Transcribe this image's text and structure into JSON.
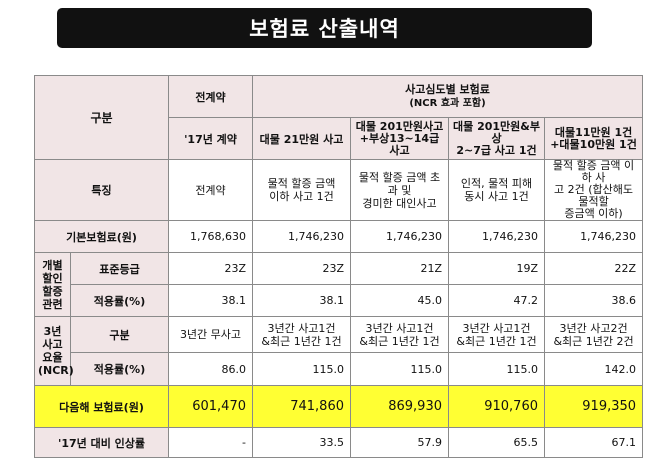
{
  "title": "보험료 산출내역",
  "header": {
    "category": "구분",
    "prior_contract": "전계약",
    "prior_year": "'17년 계약",
    "scenario_group": "사고심도별 보험료",
    "scenario_group_sub": "(NCR 효과 포함)",
    "scenarios": [
      "대물 21만원 사고",
      "대물 201만원사고\n+부상13~14급 사고",
      "대물 201만원&부상\n2~7급 사고 1건",
      "대물11만원 1건\n+대물10만원 1건"
    ]
  },
  "rows": {
    "feature": {
      "label": "특징",
      "values": [
        "전계약",
        "물적 할증 금액\n이하 사고 1건",
        "물적 할증 금액 초과 및\n경미한 대인사고",
        "인적, 물적 피해\n동시 사고 1건",
        "물적 할증 금액 이하 사\n고 2건 (합산해도 물적할\n증금액 이하)"
      ]
    },
    "base_premium": {
      "label": "기본보험료(원)",
      "values": [
        "1,768,630",
        "1,746,230",
        "1,746,230",
        "1,746,230",
        "1,746,230"
      ]
    },
    "individual_group": {
      "label": "개별\n할인\n할증\n관련"
    },
    "grade": {
      "label": "표준등급",
      "values": [
        "23Z",
        "23Z",
        "21Z",
        "19Z",
        "22Z"
      ]
    },
    "rate1": {
      "label": "적용률(%)",
      "values": [
        "38.1",
        "38.1",
        "45.0",
        "47.2",
        "38.6"
      ]
    },
    "ncr_group": {
      "label": "3년\n사고\n요율\n(NCR)"
    },
    "ncr_category": {
      "label": "구분",
      "values": [
        "3년간 무사고",
        "3년간 사고1건\n&최근 1년간 1건",
        "3년간 사고1건\n&최근 1년간 1건",
        "3년간 사고1건\n&최근 1년간 1건",
        "3년간 사고2건\n&최근 1년간 2건"
      ]
    },
    "rate2": {
      "label": "적용률(%)",
      "values": [
        "86.0",
        "115.0",
        "115.0",
        "115.0",
        "142.0"
      ]
    },
    "next_premium": {
      "label": "다음해 보험료(원)",
      "values": [
        "601,470",
        "741,860",
        "869,930",
        "910,760",
        "919,350"
      ]
    },
    "increase": {
      "label": "'17년 대비 인상률",
      "values": [
        "-",
        "33.5",
        "57.9",
        "65.5",
        "67.1"
      ]
    }
  },
  "colors": {
    "header_bg": "#f1e5e6",
    "highlight_bg": "#ffff33",
    "title_bg": "#111111"
  }
}
